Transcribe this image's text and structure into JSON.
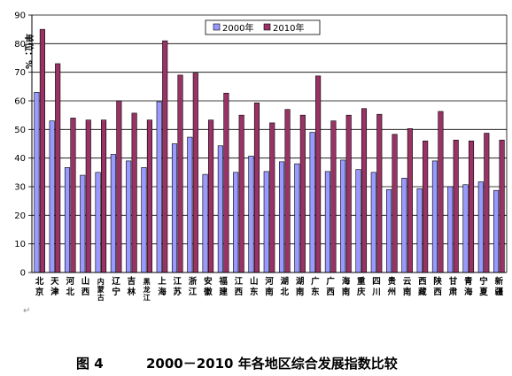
{
  "chart_data": {
    "type": "bar",
    "ylabel": "单位：%",
    "ylim": [
      0,
      90
    ],
    "yticks": [
      0,
      10,
      20,
      30,
      40,
      50,
      60,
      70,
      80,
      90
    ],
    "grid": true,
    "legend_position": "top-right",
    "categories": [
      "北京",
      "天津",
      "河北",
      "山西",
      "内蒙古",
      "辽宁",
      "吉林",
      "黑龙江",
      "上海",
      "江苏",
      "浙江",
      "安徽",
      "福建",
      "江西",
      "山东",
      "河南",
      "湖北",
      "湖南",
      "广东",
      "广西",
      "海南",
      "重庆",
      "四川",
      "贵州",
      "云南",
      "西藏",
      "陕西",
      "甘肃",
      "青海",
      "宁夏",
      "新疆"
    ],
    "category_display": [
      "北京",
      "天津",
      "河北",
      "山西",
      "内蒙古",
      "辽宁",
      "吉林",
      "黑龙江",
      "上海",
      "江苏",
      "浙江",
      "安徽",
      "福建",
      "江西",
      "山东",
      "河南",
      "湖北",
      "湖南",
      "广东",
      "广西",
      "海南",
      "重庆",
      "四川",
      "贵州",
      "云南",
      "西藏",
      "陕西",
      "甘肃",
      "青海",
      "宁夏",
      "新疆"
    ],
    "series": [
      {
        "name": "2000年",
        "color": "#9999ff",
        "values": [
          63.0,
          53.0,
          36.7,
          34.0,
          35.0,
          41.3,
          39.0,
          36.7,
          59.7,
          45.0,
          47.3,
          34.3,
          44.3,
          35.0,
          40.7,
          35.3,
          38.7,
          38.0,
          49.0,
          35.3,
          39.3,
          36.0,
          35.0,
          29.0,
          33.0,
          29.3,
          39.0,
          30.0,
          30.7,
          31.7,
          28.7
        ]
      },
      {
        "name": "2010年",
        "color": "#993366",
        "values": [
          85.0,
          73.0,
          54.0,
          53.3,
          53.3,
          60.0,
          55.7,
          53.3,
          81.0,
          69.0,
          69.7,
          53.3,
          62.7,
          55.0,
          59.3,
          52.3,
          57.0,
          55.0,
          68.7,
          53.0,
          55.0,
          57.3,
          55.3,
          48.3,
          50.3,
          46.0,
          56.3,
          46.3,
          46.0,
          48.7,
          46.3
        ]
      }
    ]
  },
  "caption": {
    "figure_number": "图 4",
    "title": "2000－2010 年各地区综合发展指数比较"
  }
}
